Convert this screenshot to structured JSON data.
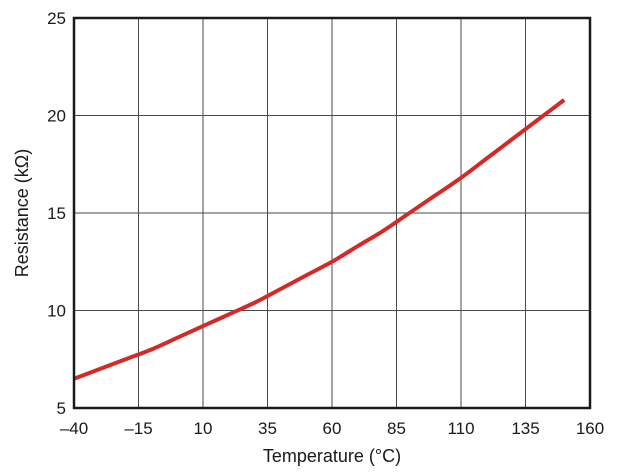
{
  "chart_data": {
    "type": "line",
    "title": "",
    "xlabel": "Temperature (°C)",
    "ylabel": "Resistance (kΩ)",
    "xlim": [
      -40,
      160
    ],
    "ylim": [
      5,
      25
    ],
    "x_ticks": [
      "–40",
      "–15",
      "10",
      "35",
      "60",
      "85",
      "110",
      "135",
      "160"
    ],
    "x_tick_values": [
      -40,
      -15,
      10,
      35,
      60,
      85,
      110,
      135,
      160
    ],
    "y_ticks": [
      "5",
      "10",
      "15",
      "20",
      "25"
    ],
    "y_tick_values": [
      5,
      10,
      15,
      20,
      25
    ],
    "grid": true,
    "legend": "none",
    "series": [
      {
        "color": "#d42a27",
        "x": [
          -40,
          -30,
          -20,
          -10,
          0,
          10,
          20,
          30,
          40,
          50,
          60,
          70,
          80,
          90,
          100,
          110,
          120,
          130,
          140,
          150
        ],
        "y": [
          6.5,
          7.0,
          7.5,
          8.0,
          8.6,
          9.2,
          9.8,
          10.4,
          11.1,
          11.8,
          12.5,
          13.3,
          14.1,
          15.0,
          15.9,
          16.8,
          17.8,
          18.8,
          19.8,
          20.8
        ]
      }
    ]
  }
}
